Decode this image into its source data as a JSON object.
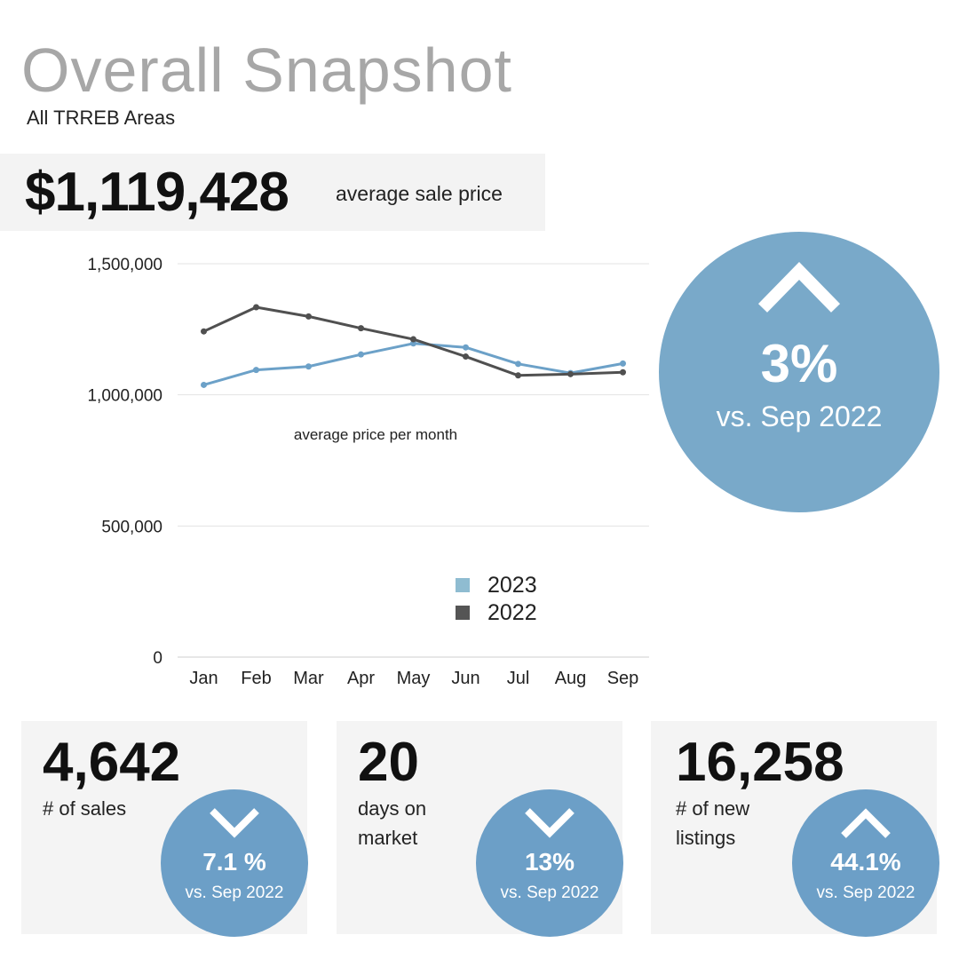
{
  "header": {
    "title": "Overall Snapshot",
    "subtitle": "All TRREB Areas"
  },
  "price": {
    "value": "$1,119,428",
    "label": "average sale price"
  },
  "change": {
    "direction": "up",
    "pct": "3%",
    "vs": "vs. Sep 2022"
  },
  "chart_data": {
    "type": "line",
    "title": "",
    "annotation": "average price per month",
    "categories": [
      "Jan",
      "Feb",
      "Mar",
      "Apr",
      "May",
      "Jun",
      "Jul",
      "Aug",
      "Sep"
    ],
    "ylim": [
      0,
      1500000
    ],
    "yticks": [
      {
        "value": 0,
        "label": "0"
      },
      {
        "value": 500000,
        "label": "500,000"
      },
      {
        "value": 1000000,
        "label": "1,000,000"
      },
      {
        "value": 1500000,
        "label": "1,500,000"
      }
    ],
    "grid": true,
    "legend": "bottom-right",
    "series": [
      {
        "name": "2023",
        "color": "#6ca1c8",
        "legend_color": "#8fbcd1",
        "values": [
          1038000,
          1095000,
          1108000,
          1154000,
          1196000,
          1181000,
          1118000,
          1083000,
          1119428
        ]
      },
      {
        "name": "2022",
        "color": "#505050",
        "legend_color": "#555555",
        "values": [
          1242000,
          1334000,
          1299000,
          1254000,
          1212000,
          1146000,
          1074000,
          1079000,
          1086000
        ]
      }
    ]
  },
  "cards": [
    {
      "number": "4,642",
      "label_lines": [
        "# of sales"
      ],
      "direction": "down",
      "pct": "7.1 %",
      "vs": "vs. Sep 2022"
    },
    {
      "number": "20",
      "label_lines": [
        "days on",
        "market"
      ],
      "direction": "down",
      "pct": "13%",
      "vs": "vs. Sep 2022"
    },
    {
      "number": "16,258",
      "label_lines": [
        "# of new",
        "listings"
      ],
      "direction": "up",
      "pct": "44.1%",
      "vs": "vs. Sep 2022"
    }
  ],
  "colors": {
    "accent": "#79a9c9",
    "accent_small": "#6c9fc7",
    "panel": "#f4f4f4",
    "title": "#a7a7a7"
  }
}
